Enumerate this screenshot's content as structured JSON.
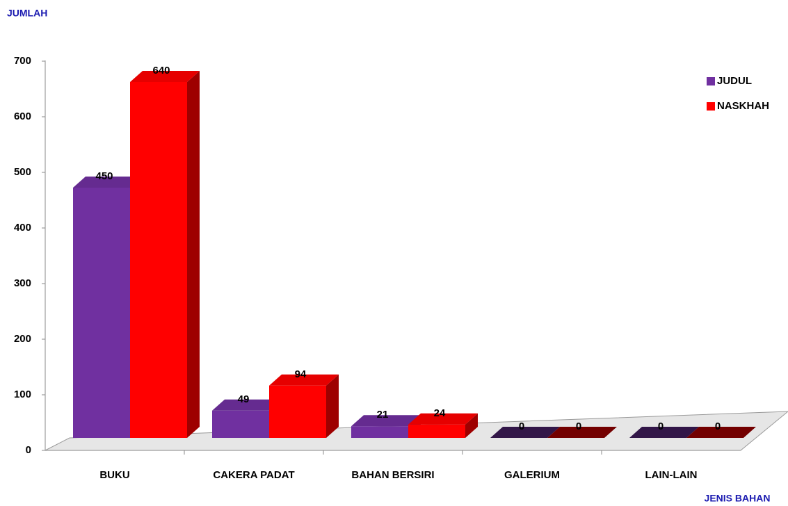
{
  "chart_data": {
    "type": "bar",
    "y_label": "JUMLAH",
    "x_label": "JENIS BAHAN",
    "categories": [
      "BUKU",
      "CAKERA PADAT",
      "BAHAN BERSIRI",
      "GALERIUM",
      "LAIN-LAIN"
    ],
    "series": [
      {
        "name": "JUDUL",
        "color": "#7030a0",
        "values": [
          450,
          49,
          21,
          0,
          0
        ]
      },
      {
        "name": "NASKHAH",
        "color": "#ff0000",
        "values": [
          640,
          94,
          24,
          0,
          0
        ]
      }
    ],
    "ylim": [
      0,
      700
    ],
    "yticks": [
      0,
      100,
      200,
      300,
      400,
      500,
      600,
      700
    ],
    "legend": "top-right"
  }
}
